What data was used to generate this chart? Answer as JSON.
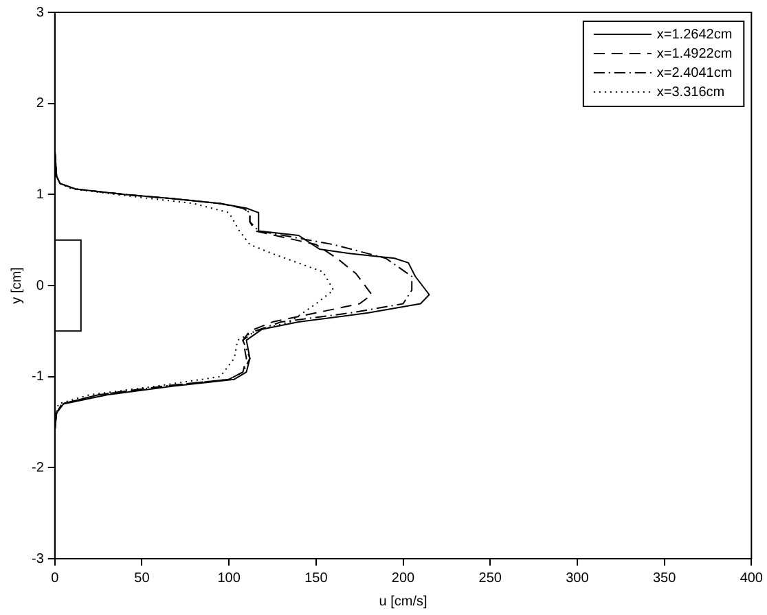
{
  "chart_data": {
    "type": "line",
    "xlabel": "u [cm/s]",
    "ylabel": "y [cm]",
    "xlim": [
      0,
      400
    ],
    "xticks": [
      0,
      50,
      100,
      150,
      200,
      250,
      300,
      350,
      400
    ],
    "ylim": [
      -3,
      3
    ],
    "yticks": [
      -3,
      -2,
      -1,
      0,
      1,
      2,
      3
    ],
    "grid": false,
    "legend": "top right",
    "marker": "none",
    "series": [
      {
        "name": "x=1.2642cm",
        "color": "#000000",
        "line_style": "solid",
        "x": [
          0,
          0,
          1,
          3,
          12,
          40,
          70,
          95,
          110,
          117,
          117,
          140,
          152,
          170,
          195,
          203,
          207,
          215,
          210,
          180,
          140,
          119,
          110,
          112,
          110,
          103,
          70,
          30,
          5,
          1,
          0,
          0
        ],
        "values": [
          1.9,
          1.5,
          1.2,
          1.12,
          1.06,
          1.0,
          0.95,
          0.9,
          0.85,
          0.8,
          0.6,
          0.55,
          0.4,
          0.35,
          0.3,
          0.25,
          0.1,
          -0.1,
          -0.2,
          -0.3,
          -0.4,
          -0.48,
          -0.6,
          -0.8,
          -0.95,
          -1.03,
          -1.1,
          -1.2,
          -1.3,
          -1.4,
          -1.6,
          -1.9
        ]
      },
      {
        "name": "x=1.4922cm",
        "color": "#000000",
        "line_style": "dashed",
        "x": [
          0,
          0,
          1,
          3,
          12,
          40,
          70,
          95,
          108,
          112,
          112,
          115,
          150,
          162,
          173,
          182,
          175,
          150,
          125,
          112,
          108,
          110,
          108,
          100,
          65,
          25,
          4,
          1,
          0,
          0
        ],
        "values": [
          1.9,
          1.5,
          1.2,
          1.12,
          1.06,
          1.0,
          0.95,
          0.9,
          0.85,
          0.8,
          0.7,
          0.6,
          0.45,
          0.3,
          0.13,
          -0.1,
          -0.2,
          -0.3,
          -0.4,
          -0.5,
          -0.6,
          -0.8,
          -0.95,
          -1.03,
          -1.1,
          -1.2,
          -1.3,
          -1.4,
          -1.6,
          -1.9
        ]
      },
      {
        "name": "x=2.4041cm",
        "color": "#000000",
        "line_style": "dashdot",
        "x": [
          0,
          0,
          1,
          3,
          12,
          40,
          70,
          95,
          108,
          112,
          112,
          117,
          160,
          190,
          205,
          205,
          200,
          170,
          130,
          115,
          108,
          112,
          108,
          100,
          65,
          25,
          4,
          1,
          0,
          0
        ],
        "values": [
          1.9,
          1.5,
          1.2,
          1.12,
          1.06,
          1.0,
          0.95,
          0.9,
          0.85,
          0.8,
          0.7,
          0.6,
          0.45,
          0.3,
          0.1,
          -0.05,
          -0.2,
          -0.3,
          -0.4,
          -0.5,
          -0.6,
          -0.8,
          -0.95,
          -1.03,
          -1.1,
          -1.2,
          -1.3,
          -1.4,
          -1.6,
          -1.9
        ]
      },
      {
        "name": "x=3.316cm",
        "color": "#000000",
        "line_style": "dotted",
        "x": [
          0,
          0,
          1,
          3,
          10,
          35,
          80,
          100,
          106,
          112,
          125,
          154,
          160,
          150,
          135,
          115,
          105,
          103,
          95,
          60,
          20,
          2,
          0,
          0
        ],
        "values": [
          1.9,
          1.5,
          1.2,
          1.12,
          1.06,
          1.0,
          0.9,
          0.8,
          0.6,
          0.45,
          0.35,
          0.15,
          -0.05,
          -0.2,
          -0.4,
          -0.5,
          -0.6,
          -0.8,
          -1.0,
          -1.1,
          -1.2,
          -1.3,
          -1.5,
          -1.9
        ]
      }
    ]
  }
}
